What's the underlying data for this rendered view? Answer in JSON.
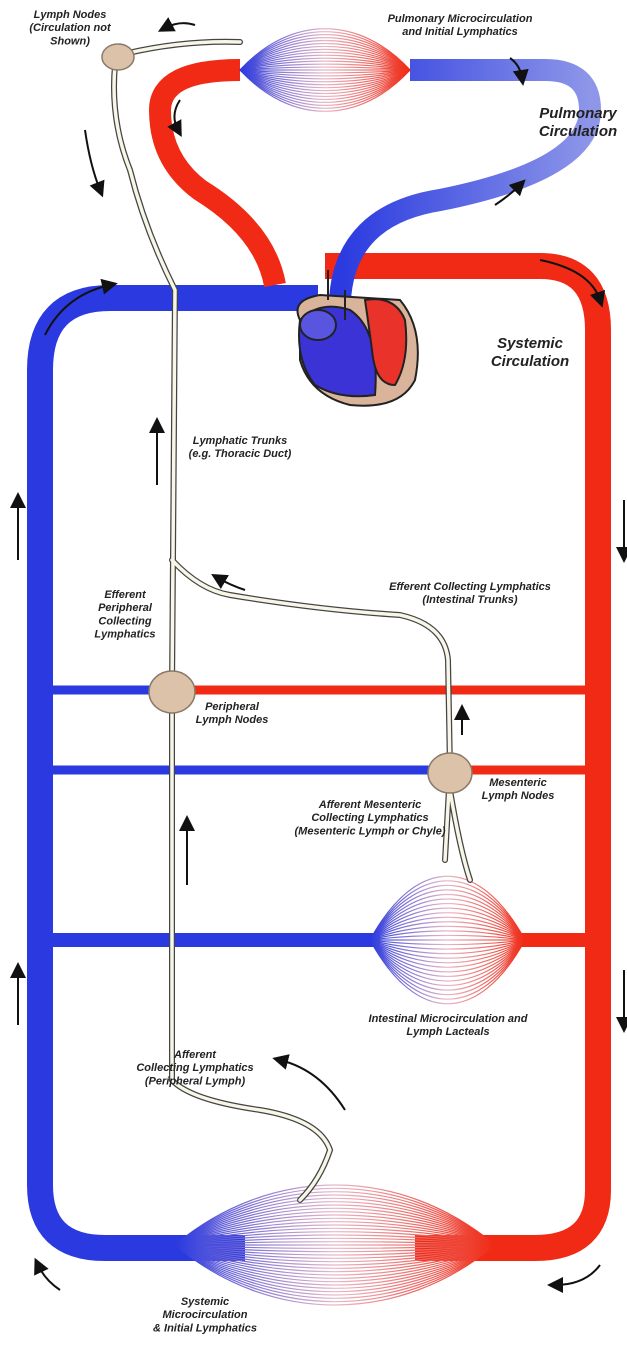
{
  "labels": [
    {
      "lines": [
        "Lymph Nodes",
        "(Circulation not",
        "Shown)"
      ]
    },
    {
      "lines": [
        "Pulmonary Microcirculation",
        "and Initial Lymphatics"
      ]
    },
    {
      "lines": [
        "Pulmonary",
        "Circulation"
      ]
    },
    {
      "lines": [
        "Systemic",
        "Circulation"
      ]
    },
    {
      "lines": [
        "Lymphatic Trunks",
        "(e.g. Thoracic Duct)"
      ]
    },
    {
      "lines": [
        "Efferent Collecting Lymphatics",
        "(Intestinal Trunks)"
      ]
    },
    {
      "lines": [
        "Efferent",
        "Peripheral",
        "Collecting",
        "Lymphatics"
      ]
    },
    {
      "lines": [
        "Peripheral",
        "Lymph Nodes"
      ]
    },
    {
      "lines": [
        "Mesenteric",
        "Lymph Nodes"
      ]
    },
    {
      "lines": [
        "Afferent Mesenteric",
        "Collecting Lymphatics",
        "(Mesenteric Lymph or Chyle)"
      ]
    },
    {
      "lines": [
        "Intestinal Microcirculation and",
        "Lymph Lacteals"
      ]
    },
    {
      "lines": [
        "Afferent",
        "Collecting Lymphatics",
        "(Peripheral Lymph)"
      ]
    },
    {
      "lines": [
        "Systemic",
        "Microcirculation",
        "& Initial Lymphatics"
      ]
    }
  ]
}
